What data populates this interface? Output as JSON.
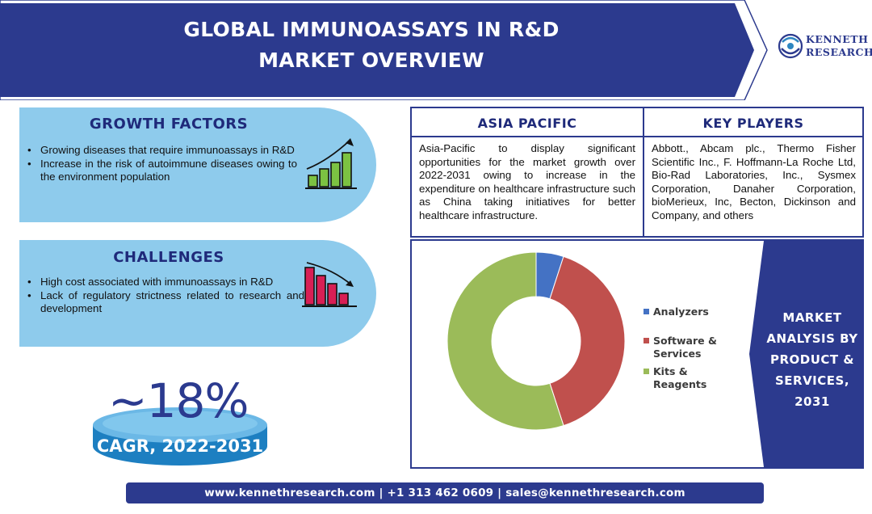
{
  "banner": {
    "title_line1": "GLOBAL IMMUNOASSAYS IN R&D",
    "title_line2": "MARKET OVERVIEW",
    "color": "#2c3a8e"
  },
  "logo": {
    "line1": "KENNETH",
    "line2": "RESEARCH"
  },
  "growth_factors": {
    "heading": "GROWTH FACTORS",
    "items": [
      "Growing diseases that require immunoassays in R&D",
      "Increase in the risk of autoimmune diseases owing to the environment population"
    ],
    "icon": "rising-bar-chart-icon"
  },
  "challenges": {
    "heading": "CHALLENGES",
    "items": [
      "High cost associated with immunoassays in R&D",
      "Lack of regulatory strictness related to research and development"
    ],
    "icon": "falling-bar-chart-icon"
  },
  "cagr": {
    "value": "~18%",
    "label": "CAGR, 2022-2031"
  },
  "asia_pacific": {
    "heading": "ASIA PACIFIC",
    "text": "Asia-Pacific to display significant opportunities for the market growth over 2022-2031 owing to increase in the expenditure on healthcare infrastructure such as China taking initiatives for better healthcare infrastructure."
  },
  "key_players": {
    "heading": "KEY PLAYERS",
    "text": "Abbott., Abcam plc., Thermo Fisher Scientific Inc., F. Hoffmann-La Roche Ltd, Bio-Rad Laboratories, Inc., Sysmex Corporation, Danaher Corporation, bioMerieux, Inc, Becton, Dickinson and Company, and others"
  },
  "market_analysis": {
    "title": "MARKET ANALYSIS BY PRODUCT & SERVICES, 2031"
  },
  "chart_data": {
    "type": "pie",
    "donut": true,
    "categories": [
      "Analyzers",
      "Software & Services",
      "Kits & Reagents"
    ],
    "values": [
      5,
      40,
      55
    ],
    "colors": [
      "#4472c4",
      "#c0504d",
      "#9bbb59"
    ],
    "legend": "right"
  },
  "footer": {
    "text": "www.kennethresearch.com | +1 313 462 0609 | sales@kennethresearch.com"
  }
}
